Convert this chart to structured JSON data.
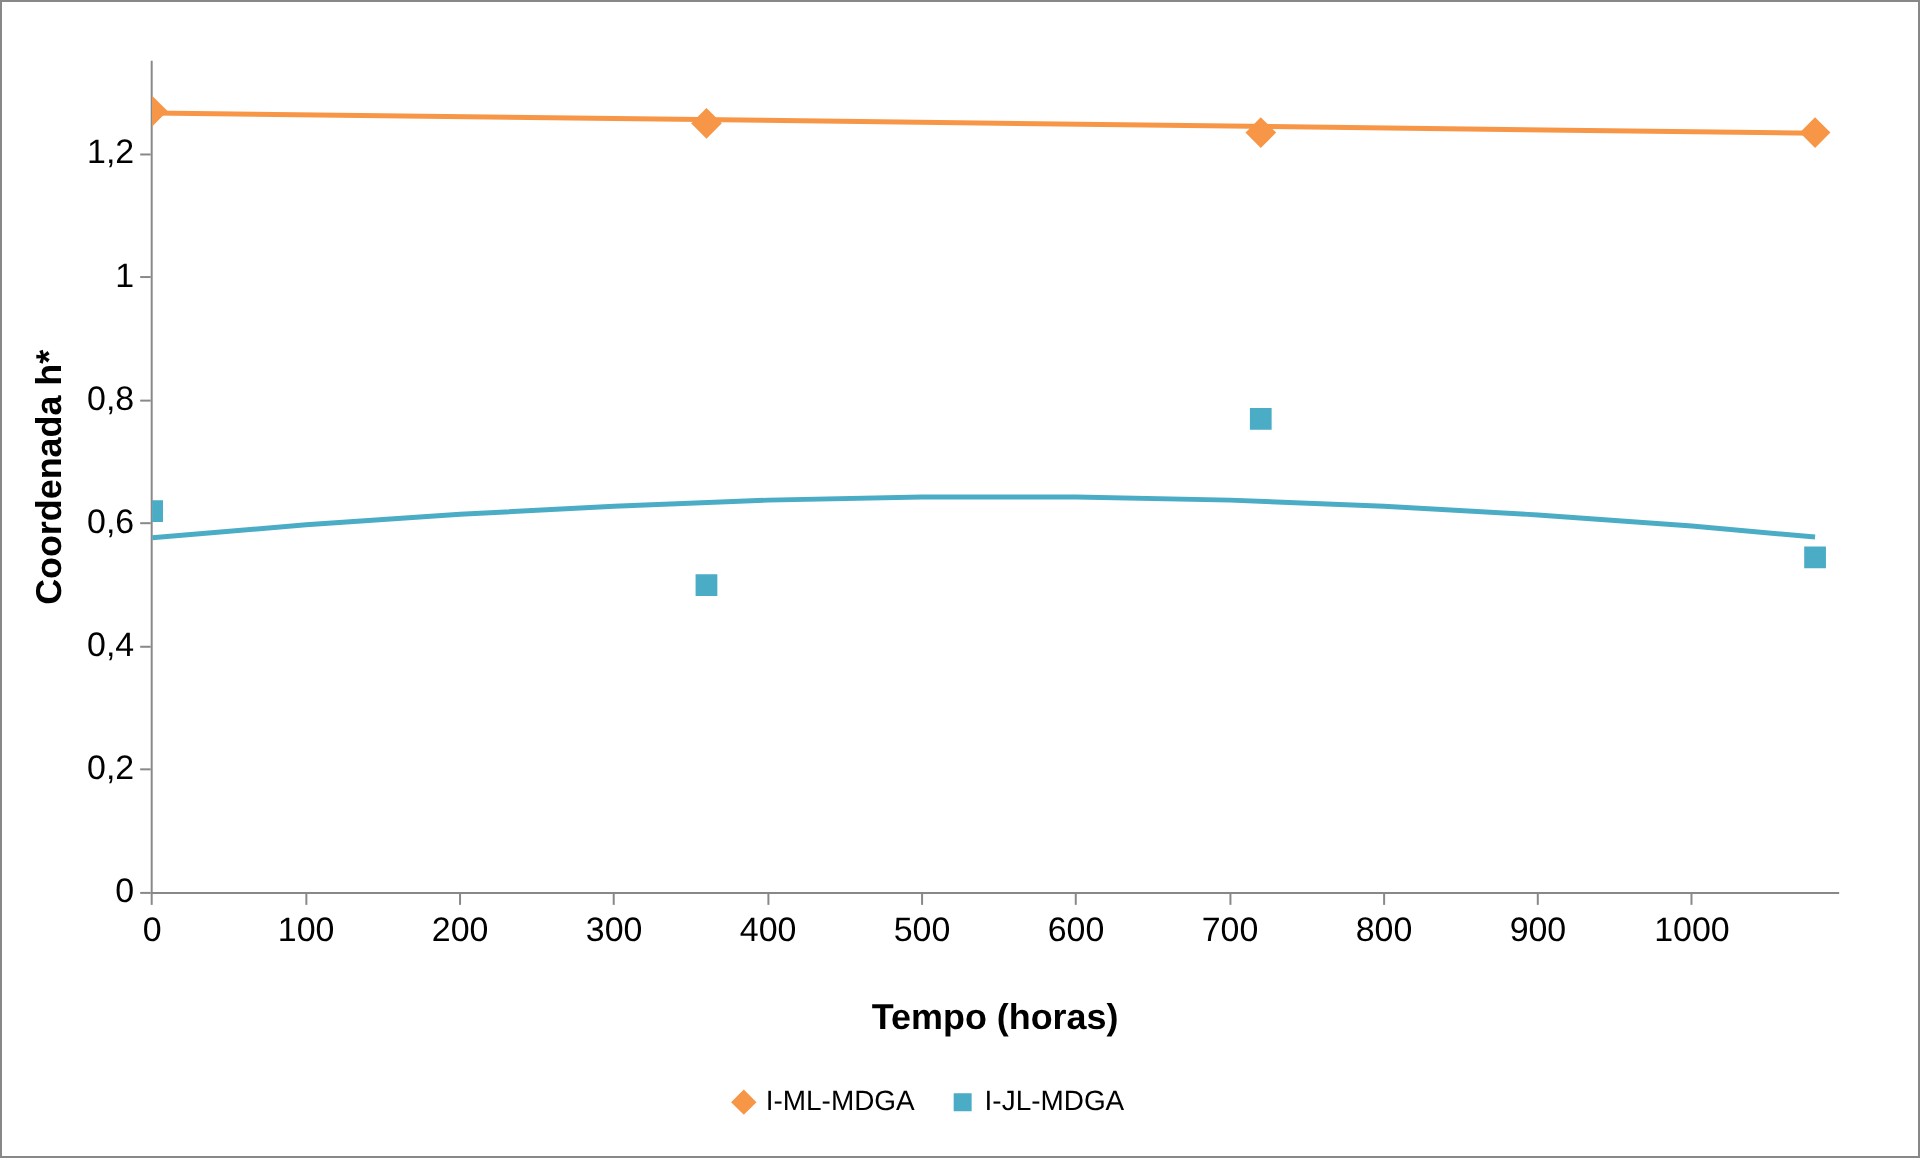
{
  "chart_data": {
    "type": "scatter",
    "xlabel": "Tempo (horas)",
    "ylabel": "Coordenada h*",
    "xlim": [
      0,
      1095
    ],
    "xticks": [
      0,
      100,
      200,
      300,
      400,
      500,
      600,
      700,
      800,
      900,
      1000
    ],
    "ylim": [
      0,
      1.35
    ],
    "yticks": [
      0,
      {
        "value": 0.2,
        "label": "0,2"
      },
      {
        "value": 0.4,
        "label": "0,4"
      },
      {
        "value": 0.6,
        "label": "0,6"
      },
      {
        "value": 0.8,
        "label": "0,8"
      },
      1,
      {
        "value": 1.2,
        "label": "1,2"
      }
    ],
    "grid": false,
    "legend": "bottom",
    "series": [
      {
        "name": "I-ML-MDGA",
        "type": "scatter",
        "marker": "diamond",
        "color": "#f79646",
        "x": [
          0,
          360,
          720,
          1080
        ],
        "values": [
          1.27,
          1.25,
          1.235,
          1.235
        ]
      },
      {
        "name": "I-JL-MDGA",
        "type": "scatter",
        "marker": "square",
        "color": "#4bacc6",
        "x": [
          0,
          360,
          720,
          1080
        ],
        "values": [
          0.62,
          0.5,
          0.77,
          0.545
        ]
      },
      {
        "type": "line",
        "marker": "none",
        "color": "#f79646",
        "x": [
          0,
          1080
        ],
        "values": [
          1.267,
          1.234
        ]
      },
      {
        "type": "line",
        "marker": "none",
        "color": "#4bacc6",
        "x": [
          0,
          100,
          200,
          300,
          400,
          500,
          600,
          700,
          800,
          900,
          1000,
          1080
        ],
        "values": [
          0.577,
          0.598,
          0.615,
          0.628,
          0.638,
          0.643,
          0.643,
          0.638,
          0.628,
          0.614,
          0.596,
          0.578
        ]
      }
    ]
  }
}
